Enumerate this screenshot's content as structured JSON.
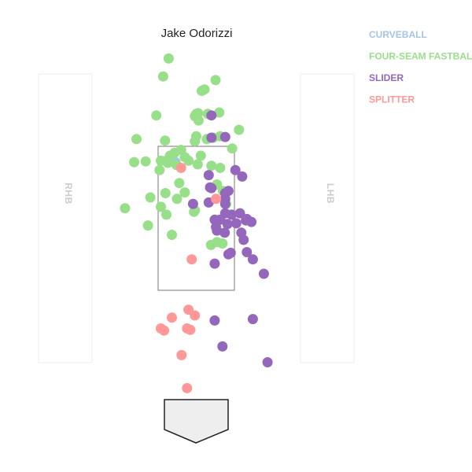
{
  "chart_data": {
    "type": "scatter",
    "title": "Jake Odorizzi",
    "legend_position": "top-right",
    "batter_labels": {
      "left": "RHB",
      "right": "LHB"
    },
    "x_range": [
      -2.5,
      2.5
    ],
    "y_range": [
      0,
      5
    ],
    "strike_zone": {
      "x": [
        -0.83,
        0.83
      ],
      "y": [
        1.5,
        3.5
      ]
    },
    "series": [
      {
        "name": "CURVEBALL",
        "color": "#a6c3e8",
        "points": [
          {
            "x": -0.45,
            "y": 3.28
          }
        ]
      },
      {
        "name": "FOUR-SEAM FASTBALL",
        "color": "#98df8a",
        "points": [
          {
            "x": -0.6,
            "y": 4.72
          },
          {
            "x": -0.72,
            "y": 4.47
          },
          {
            "x": 0.42,
            "y": 4.42
          },
          {
            "x": 0.12,
            "y": 4.27
          },
          {
            "x": 0.18,
            "y": 4.29
          },
          {
            "x": -0.87,
            "y": 3.93
          },
          {
            "x": 0.0,
            "y": 3.95
          },
          {
            "x": -0.03,
            "y": 3.92
          },
          {
            "x": 0.04,
            "y": 3.96
          },
          {
            "x": 0.25,
            "y": 3.95
          },
          {
            "x": 0.5,
            "y": 3.97
          },
          {
            "x": 0.05,
            "y": 3.86
          },
          {
            "x": -1.3,
            "y": 3.6
          },
          {
            "x": -0.68,
            "y": 3.58
          },
          {
            "x": 0.0,
            "y": 3.64
          },
          {
            "x": -0.03,
            "y": 3.57
          },
          {
            "x": 0.23,
            "y": 3.6
          },
          {
            "x": 0.37,
            "y": 3.62
          },
          {
            "x": 0.52,
            "y": 3.64
          },
          {
            "x": 0.93,
            "y": 3.73
          },
          {
            "x": 0.78,
            "y": 3.47
          },
          {
            "x": -0.33,
            "y": 3.45
          },
          {
            "x": -0.57,
            "y": 3.37
          },
          {
            "x": -0.47,
            "y": 3.41
          },
          {
            "x": -0.25,
            "y": 3.35
          },
          {
            "x": 0.1,
            "y": 3.37
          },
          {
            "x": -0.6,
            "y": 3.33
          },
          {
            "x": -0.77,
            "y": 3.3
          },
          {
            "x": -1.35,
            "y": 3.28
          },
          {
            "x": -1.1,
            "y": 3.29
          },
          {
            "x": -0.62,
            "y": 3.27
          },
          {
            "x": -0.17,
            "y": 3.3
          },
          {
            "x": 0.03,
            "y": 3.25
          },
          {
            "x": 0.33,
            "y": 3.23
          },
          {
            "x": -0.43,
            "y": 3.24
          },
          {
            "x": -0.8,
            "y": 3.17
          },
          {
            "x": 0.52,
            "y": 3.2
          },
          {
            "x": -0.37,
            "y": 2.99
          },
          {
            "x": 0.45,
            "y": 2.97
          },
          {
            "x": 0.58,
            "y": 2.88
          },
          {
            "x": -0.25,
            "y": 2.86
          },
          {
            "x": -0.67,
            "y": 2.85
          },
          {
            "x": -1.0,
            "y": 2.79
          },
          {
            "x": -0.42,
            "y": 2.77
          },
          {
            "x": 0.65,
            "y": 2.7
          },
          {
            "x": 0.63,
            "y": 2.73
          },
          {
            "x": -0.77,
            "y": 2.66
          },
          {
            "x": -0.05,
            "y": 2.59
          },
          {
            "x": -0.03,
            "y": 2.61
          },
          {
            "x": -1.55,
            "y": 2.64
          },
          {
            "x": -0.65,
            "y": 2.55
          },
          {
            "x": -1.05,
            "y": 2.4
          },
          {
            "x": -0.53,
            "y": 2.27
          },
          {
            "x": 0.32,
            "y": 2.13
          },
          {
            "x": 0.45,
            "y": 2.17
          },
          {
            "x": 0.57,
            "y": 2.15
          }
        ]
      },
      {
        "name": "SLIDER",
        "color": "#9467bd",
        "points": [
          {
            "x": 0.33,
            "y": 3.93
          },
          {
            "x": 0.33,
            "y": 3.62
          },
          {
            "x": 0.63,
            "y": 3.63
          },
          {
            "x": 0.85,
            "y": 3.17
          },
          {
            "x": 0.27,
            "y": 3.1
          },
          {
            "x": 1.0,
            "y": 3.08
          },
          {
            "x": 0.3,
            "y": 2.93
          },
          {
            "x": 0.33,
            "y": 2.92
          },
          {
            "x": 0.63,
            "y": 2.85
          },
          {
            "x": 0.7,
            "y": 2.88
          },
          {
            "x": -0.07,
            "y": 2.7
          },
          {
            "x": 0.27,
            "y": 2.72
          },
          {
            "x": 0.63,
            "y": 2.77
          },
          {
            "x": 0.77,
            "y": 2.55
          },
          {
            "x": 0.63,
            "y": 2.57
          },
          {
            "x": 0.95,
            "y": 2.57
          },
          {
            "x": 0.4,
            "y": 2.48
          },
          {
            "x": 0.52,
            "y": 2.48
          },
          {
            "x": 1.08,
            "y": 2.47
          },
          {
            "x": 1.1,
            "y": 2.49
          },
          {
            "x": 0.87,
            "y": 2.43
          },
          {
            "x": 0.68,
            "y": 2.42
          },
          {
            "x": 0.43,
            "y": 2.38
          },
          {
            "x": 0.62,
            "y": 2.3
          },
          {
            "x": 1.2,
            "y": 2.45
          },
          {
            "x": 0.45,
            "y": 2.33
          },
          {
            "x": 0.98,
            "y": 2.3
          },
          {
            "x": 1.03,
            "y": 2.2
          },
          {
            "x": 1.1,
            "y": 2.03
          },
          {
            "x": 0.75,
            "y": 2.02
          },
          {
            "x": 0.7,
            "y": 2.0
          },
          {
            "x": 1.23,
            "y": 1.93
          },
          {
            "x": 0.4,
            "y": 1.87
          },
          {
            "x": 1.23,
            "y": 1.1
          },
          {
            "x": 0.4,
            "y": 1.08
          },
          {
            "x": 0.57,
            "y": 0.72
          },
          {
            "x": 1.55,
            "y": 0.5
          },
          {
            "x": 1.47,
            "y": 1.73
          },
          {
            "x": 0.63,
            "y": 2.7
          }
        ]
      },
      {
        "name": "SPLITTER",
        "color": "#ff9896",
        "points": [
          {
            "x": -0.33,
            "y": 3.2
          },
          {
            "x": 0.43,
            "y": 2.77
          },
          {
            "x": -0.1,
            "y": 1.93
          },
          {
            "x": -0.03,
            "y": 1.15
          },
          {
            "x": -0.17,
            "y": 1.23
          },
          {
            "x": -0.53,
            "y": 1.12
          },
          {
            "x": -0.7,
            "y": 0.94
          },
          {
            "x": -0.2,
            "y": 0.97
          },
          {
            "x": -0.77,
            "y": 0.97
          },
          {
            "x": -0.13,
            "y": 0.95
          },
          {
            "x": -0.32,
            "y": 0.6
          },
          {
            "x": -0.2,
            "y": 0.14
          }
        ]
      }
    ]
  }
}
